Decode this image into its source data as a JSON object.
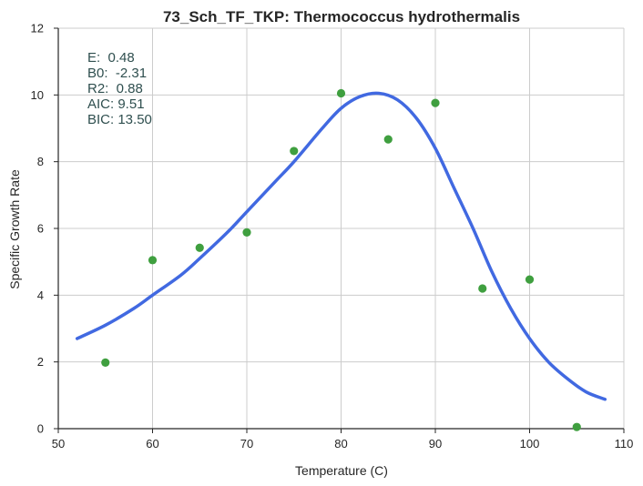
{
  "chart_data": {
    "type": "scatter",
    "title": "73_Sch_TF_TKP: Thermococcus hydrothermalis",
    "xlabel": "Temperature (C)",
    "ylabel": "Specific Growth Rate",
    "xlim": [
      50,
      110
    ],
    "ylim": [
      0,
      12
    ],
    "xticks": [
      "50",
      "60",
      "70",
      "80",
      "90",
      "100",
      "110"
    ],
    "yticks": [
      "0",
      "2",
      "4",
      "6",
      "8",
      "10",
      "12"
    ],
    "grid": true,
    "series": [
      {
        "kind": "scatter",
        "color": "#3f9f3f",
        "points": [
          {
            "x": 55,
            "y": 1.98
          },
          {
            "x": 60,
            "y": 5.05
          },
          {
            "x": 65,
            "y": 5.42
          },
          {
            "x": 70,
            "y": 5.88
          },
          {
            "x": 75,
            "y": 8.32
          },
          {
            "x": 80,
            "y": 10.05
          },
          {
            "x": 85,
            "y": 8.67
          },
          {
            "x": 90,
            "y": 9.76
          },
          {
            "x": 95,
            "y": 4.2
          },
          {
            "x": 100,
            "y": 4.47
          },
          {
            "x": 105,
            "y": 0.05
          }
        ]
      },
      {
        "kind": "line",
        "color": "#4169e1",
        "points": [
          {
            "x": 52,
            "y": 2.7
          },
          {
            "x": 55,
            "y": 3.1
          },
          {
            "x": 58,
            "y": 3.6
          },
          {
            "x": 60,
            "y": 4.0
          },
          {
            "x": 63,
            "y": 4.6
          },
          {
            "x": 65,
            "y": 5.1
          },
          {
            "x": 68,
            "y": 5.9
          },
          {
            "x": 70,
            "y": 6.5
          },
          {
            "x": 73,
            "y": 7.4
          },
          {
            "x": 75,
            "y": 8.0
          },
          {
            "x": 78,
            "y": 9.0
          },
          {
            "x": 80,
            "y": 9.6
          },
          {
            "x": 82,
            "y": 9.95
          },
          {
            "x": 84,
            "y": 10.05
          },
          {
            "x": 86,
            "y": 9.85
          },
          {
            "x": 88,
            "y": 9.3
          },
          {
            "x": 90,
            "y": 8.4
          },
          {
            "x": 92,
            "y": 7.2
          },
          {
            "x": 94,
            "y": 6.0
          },
          {
            "x": 96,
            "y": 4.7
          },
          {
            "x": 98,
            "y": 3.6
          },
          {
            "x": 100,
            "y": 2.7
          },
          {
            "x": 102,
            "y": 2.0
          },
          {
            "x": 104,
            "y": 1.5
          },
          {
            "x": 106,
            "y": 1.1
          },
          {
            "x": 108,
            "y": 0.88
          }
        ]
      }
    ],
    "annotations": [
      "E:  0.48",
      "B0:  -2.31",
      "R2:  0.88",
      "AIC: 9.51",
      "BIC: 13.50"
    ],
    "annotation_color": "#2f4f4f"
  }
}
